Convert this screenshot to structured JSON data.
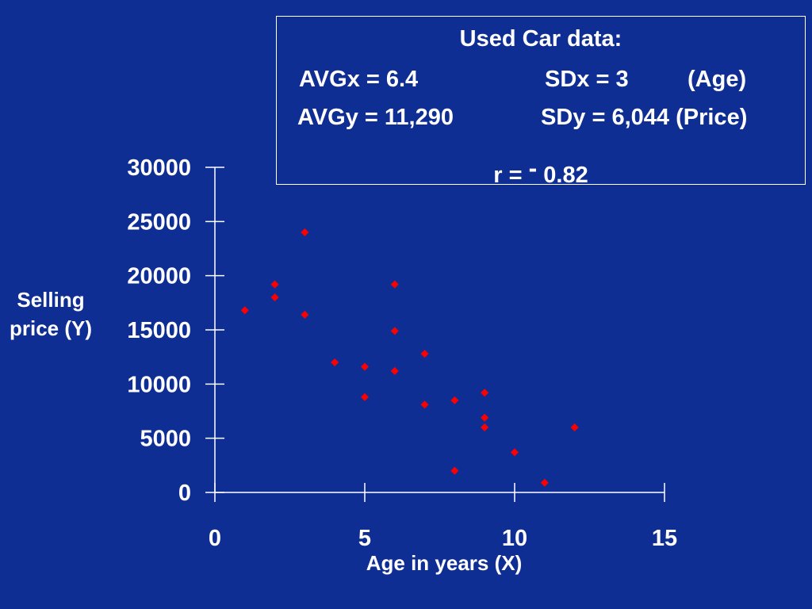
{
  "info": {
    "title": "Used Car data:",
    "avgx": "AVGx = 6.4",
    "sdx": "SDx = 3",
    "age_unit": "(Age)",
    "avgy": "AVGy = 11,290",
    "sdy": "SDy = 6,044 (Price)",
    "r_label": "r =",
    "r_sign": "-",
    "r_value": "0.82"
  },
  "chart_data": {
    "type": "scatter",
    "title": "",
    "xlabel": "Age in years (X)",
    "ylabel": "Selling price (Y)",
    "xlim": [
      0,
      15
    ],
    "ylim": [
      0,
      30000
    ],
    "x_ticks": [
      0,
      5,
      10,
      15
    ],
    "y_ticks": [
      0,
      5000,
      10000,
      15000,
      20000,
      25000,
      30000
    ],
    "grid": false,
    "legend": "none",
    "marker": "diamond",
    "marker_color": "#ff0000",
    "axis_color": "#ffffff",
    "background_color": "#0f2e93",
    "points": [
      {
        "x": 1,
        "y": 16800
      },
      {
        "x": 2,
        "y": 19200
      },
      {
        "x": 2,
        "y": 18000
      },
      {
        "x": 3,
        "y": 24000
      },
      {
        "x": 3,
        "y": 16400
      },
      {
        "x": 4,
        "y": 12000
      },
      {
        "x": 5,
        "y": 11600
      },
      {
        "x": 5,
        "y": 8800
      },
      {
        "x": 6,
        "y": 19200
      },
      {
        "x": 6,
        "y": 14900
      },
      {
        "x": 6,
        "y": 11200
      },
      {
        "x": 7,
        "y": 12800
      },
      {
        "x": 7,
        "y": 8100
      },
      {
        "x": 8,
        "y": 8500
      },
      {
        "x": 8,
        "y": 2000
      },
      {
        "x": 9,
        "y": 9200
      },
      {
        "x": 9,
        "y": 6900
      },
      {
        "x": 9,
        "y": 6000
      },
      {
        "x": 10,
        "y": 3700
      },
      {
        "x": 11,
        "y": 900
      },
      {
        "x": 12,
        "y": 6000
      }
    ]
  }
}
